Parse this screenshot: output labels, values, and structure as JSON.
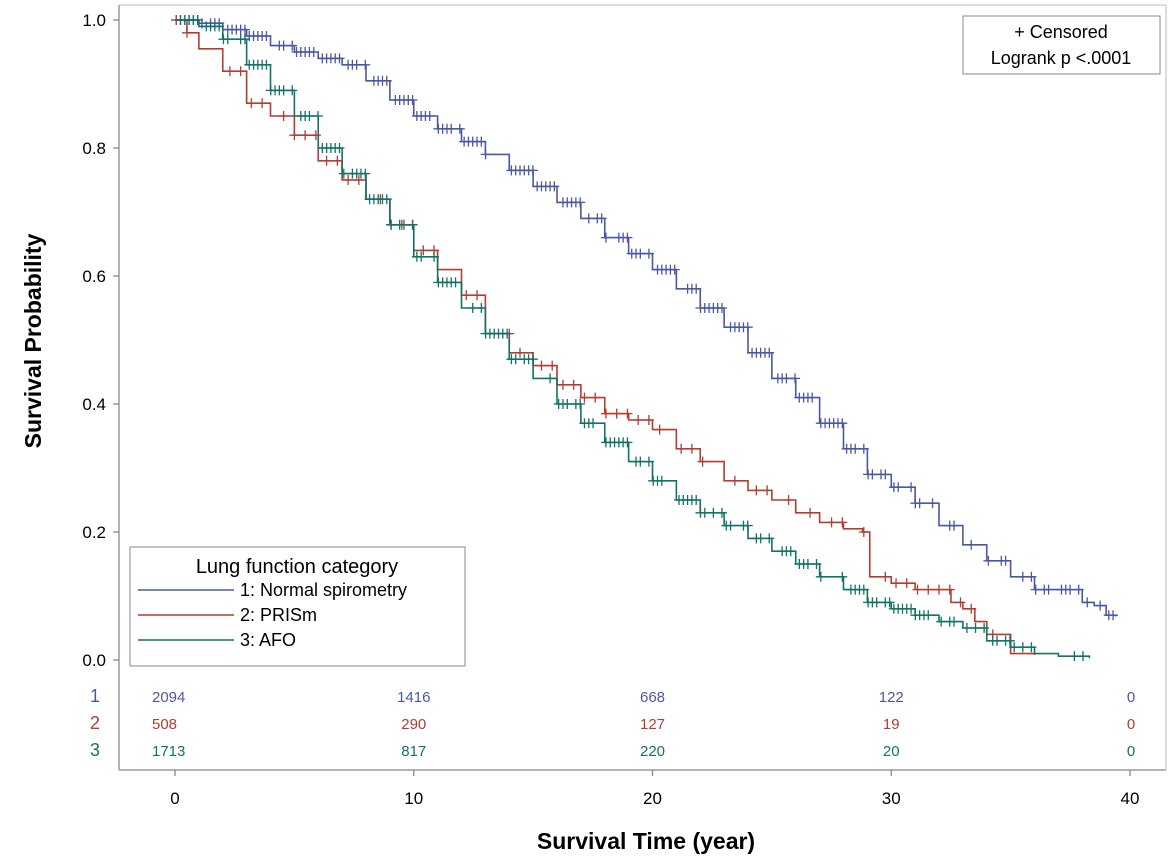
{
  "chart_data": {
    "type": "line",
    "subtype": "kaplan-meier",
    "xlabel": "Survival Time (year)",
    "ylabel": "Survival Probability",
    "xlim": [
      -2,
      41
    ],
    "ylim": [
      0.0,
      1.0
    ],
    "xticks": [
      "0",
      "10",
      "20",
      "30",
      "40"
    ],
    "yticks": [
      "0.0",
      "0.2",
      "0.4",
      "0.6",
      "0.8",
      "1.0"
    ],
    "grid": false,
    "inset": {
      "line1": "+ Censored",
      "line2": "Logrank p <.0001",
      "position": "top-right"
    },
    "legend": {
      "title": "Lung function category",
      "position": "bottom-left"
    },
    "series": [
      {
        "name": "1: Normal spirometry",
        "id": "1",
        "color": "#4a58a3",
        "x": [
          0,
          1,
          2,
          3,
          4,
          5,
          6,
          7,
          8,
          9,
          10,
          11,
          12,
          13,
          14,
          15,
          16,
          17,
          18,
          19,
          20,
          21,
          22,
          23,
          24,
          25,
          26,
          27,
          28,
          29,
          30,
          31,
          32,
          33,
          34,
          35,
          36,
          37,
          38,
          38.5,
          39,
          39.4
        ],
        "y": [
          1.0,
          0.995,
          0.985,
          0.975,
          0.96,
          0.95,
          0.94,
          0.93,
          0.905,
          0.875,
          0.85,
          0.83,
          0.81,
          0.79,
          0.765,
          0.74,
          0.715,
          0.69,
          0.66,
          0.635,
          0.61,
          0.58,
          0.55,
          0.52,
          0.48,
          0.44,
          0.41,
          0.37,
          0.33,
          0.29,
          0.27,
          0.245,
          0.21,
          0.18,
          0.155,
          0.13,
          0.11,
          0.11,
          0.09,
          0.085,
          0.07,
          0.068
        ]
      },
      {
        "name": "2: PRISm",
        "id": "2",
        "color": "#b23d31",
        "x": [
          0,
          0.5,
          1,
          2,
          3,
          4,
          5,
          6,
          7,
          8,
          9,
          10,
          11,
          12,
          13,
          14,
          15,
          16,
          17,
          18,
          19,
          20,
          21,
          22,
          23,
          24,
          25,
          26,
          27,
          28,
          28.8,
          29.1,
          30,
          31,
          32,
          32.5,
          33,
          33.5,
          34,
          35,
          36
        ],
        "y": [
          1.0,
          0.98,
          0.955,
          0.92,
          0.87,
          0.85,
          0.82,
          0.78,
          0.75,
          0.72,
          0.68,
          0.64,
          0.61,
          0.57,
          0.51,
          0.48,
          0.46,
          0.43,
          0.41,
          0.385,
          0.375,
          0.36,
          0.33,
          0.31,
          0.28,
          0.265,
          0.25,
          0.23,
          0.215,
          0.205,
          0.2,
          0.13,
          0.12,
          0.11,
          0.11,
          0.09,
          0.08,
          0.06,
          0.04,
          0.01,
          0.008
        ]
      },
      {
        "name": "3: AFO",
        "id": "3",
        "color": "#127168",
        "x": [
          0,
          1,
          2,
          3,
          4,
          5,
          6,
          7,
          8,
          9,
          10,
          11,
          12,
          13,
          14,
          15,
          16,
          17,
          18,
          19,
          20,
          21,
          22,
          23,
          24,
          25,
          26,
          27,
          28,
          29,
          30,
          31,
          32,
          33,
          34,
          35,
          36,
          37,
          38.3
        ],
        "y": [
          1.0,
          0.99,
          0.97,
          0.93,
          0.89,
          0.85,
          0.8,
          0.76,
          0.72,
          0.68,
          0.63,
          0.59,
          0.55,
          0.51,
          0.47,
          0.44,
          0.4,
          0.37,
          0.34,
          0.31,
          0.28,
          0.25,
          0.23,
          0.21,
          0.19,
          0.17,
          0.15,
          0.13,
          0.11,
          0.09,
          0.08,
          0.07,
          0.06,
          0.05,
          0.03,
          0.02,
          0.01,
          0.006,
          0.003
        ]
      }
    ],
    "risk_table": {
      "times": [
        0,
        10,
        20,
        30,
        40
      ],
      "rows": [
        {
          "id": "1",
          "color": "#4a58a3",
          "values": [
            "2094",
            "1416",
            "668",
            "122",
            "0"
          ]
        },
        {
          "id": "2",
          "color": "#b23d31",
          "values": [
            "508",
            "290",
            "127",
            "19",
            "0"
          ]
        },
        {
          "id": "3",
          "color": "#127168",
          "values": [
            "1713",
            "817",
            "220",
            "20",
            "0"
          ]
        }
      ]
    }
  }
}
